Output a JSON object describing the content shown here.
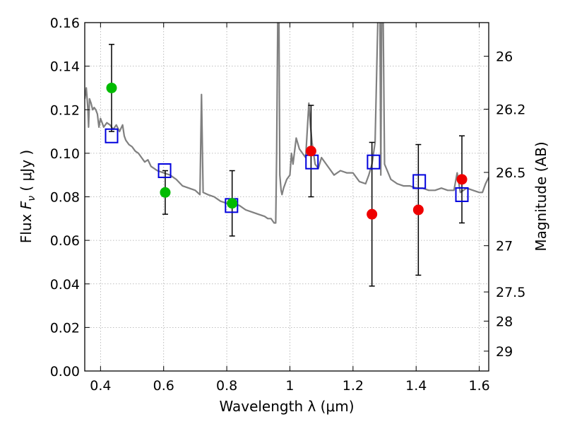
{
  "chart_data": {
    "type": "scatter",
    "xlabel": "Wavelength  λ (μm)",
    "ylabel": "Flux  F_ν  ( μJy )",
    "ylabel_parts": {
      "prefix": "Flux  ",
      "symbol": "F",
      "sub": "ν",
      "suffix": "  ( μJy )"
    },
    "y2label": "Magnitude (AB)",
    "xlim": [
      0.35,
      1.63
    ],
    "ylim": [
      0.0,
      0.16
    ],
    "grid": true,
    "x_ticks": [
      0.4,
      0.6,
      0.8,
      1.0,
      1.2,
      1.4,
      1.6
    ],
    "x_tick_labels": [
      "0.4",
      "0.6",
      "0.8",
      "1",
      "1.2",
      "1.4",
      "1.6"
    ],
    "y_ticks": [
      0.0,
      0.02,
      0.04,
      0.06,
      0.08,
      0.1,
      0.12,
      0.14,
      0.16
    ],
    "y_tick_labels": [
      "0.00",
      "0.02",
      "0.04",
      "0.06",
      "0.08",
      "0.10",
      "0.12",
      "0.14",
      "0.16"
    ],
    "mag_ticks": [
      26,
      26.2,
      26.5,
      27,
      27.5,
      28,
      29
    ],
    "mag_tick_labels": [
      "26",
      "26.2",
      "26.5",
      "27",
      "27.5",
      "28",
      "29"
    ],
    "colors": {
      "spectrum": "#808080",
      "green": "#00bb00",
      "red": "#ee0000",
      "box": "#0000dd",
      "errorbar": "#000000",
      "grid": "#aaaaaa"
    },
    "series": [
      {
        "name": "model-spectrum",
        "kind": "line",
        "x": [
          0.35,
          0.355,
          0.36,
          0.362,
          0.365,
          0.37,
          0.375,
          0.38,
          0.385,
          0.39,
          0.395,
          0.4,
          0.405,
          0.41,
          0.42,
          0.43,
          0.44,
          0.45,
          0.46,
          0.47,
          0.475,
          0.48,
          0.49,
          0.5,
          0.51,
          0.52,
          0.53,
          0.54,
          0.55,
          0.56,
          0.57,
          0.58,
          0.6,
          0.62,
          0.64,
          0.66,
          0.68,
          0.7,
          0.715,
          0.72,
          0.725,
          0.74,
          0.76,
          0.78,
          0.8,
          0.82,
          0.84,
          0.86,
          0.88,
          0.9,
          0.92,
          0.93,
          0.94,
          0.95,
          0.955,
          0.958,
          0.962,
          0.965,
          0.968,
          0.972,
          0.975,
          0.98,
          0.99,
          1.0,
          1.005,
          1.01,
          1.02,
          1.03,
          1.04,
          1.05,
          1.06,
          1.065,
          1.07,
          1.08,
          1.09,
          1.1,
          1.12,
          1.14,
          1.16,
          1.18,
          1.2,
          1.22,
          1.24,
          1.25,
          1.26,
          1.27,
          1.28,
          1.285,
          1.288,
          1.291,
          1.295,
          1.3,
          1.32,
          1.34,
          1.36,
          1.38,
          1.4,
          1.42,
          1.44,
          1.46,
          1.48,
          1.5,
          1.52,
          1.53,
          1.54,
          1.56,
          1.58,
          1.6,
          1.61,
          1.62,
          1.63
        ],
        "y": [
          0.125,
          0.13,
          0.12,
          0.112,
          0.125,
          0.123,
          0.12,
          0.121,
          0.12,
          0.118,
          0.112,
          0.116,
          0.114,
          0.112,
          0.114,
          0.113,
          0.111,
          0.113,
          0.11,
          0.113,
          0.108,
          0.106,
          0.104,
          0.103,
          0.101,
          0.1,
          0.098,
          0.096,
          0.097,
          0.094,
          0.093,
          0.092,
          0.091,
          0.09,
          0.088,
          0.085,
          0.084,
          0.083,
          0.081,
          0.127,
          0.082,
          0.081,
          0.08,
          0.078,
          0.077,
          0.077,
          0.076,
          0.074,
          0.073,
          0.072,
          0.071,
          0.07,
          0.07,
          0.068,
          0.068,
          0.1,
          0.17,
          0.17,
          0.09,
          0.083,
          0.081,
          0.084,
          0.088,
          0.09,
          0.1,
          0.095,
          0.107,
          0.102,
          0.1,
          0.098,
          0.123,
          0.113,
          0.105,
          0.095,
          0.093,
          0.098,
          0.094,
          0.09,
          0.092,
          0.091,
          0.091,
          0.087,
          0.086,
          0.09,
          0.095,
          0.105,
          0.17,
          0.17,
          0.09,
          0.17,
          0.17,
          0.095,
          0.088,
          0.086,
          0.085,
          0.085,
          0.084,
          0.084,
          0.083,
          0.083,
          0.084,
          0.083,
          0.083,
          0.091,
          0.082,
          0.084,
          0.083,
          0.082,
          0.082,
          0.086,
          0.089
        ]
      },
      {
        "name": "model-photometry",
        "kind": "open-square",
        "x": [
          0.435,
          0.603,
          0.815,
          1.07,
          1.265,
          1.41,
          1.545
        ],
        "y": [
          0.108,
          0.092,
          0.076,
          0.096,
          0.096,
          0.087,
          0.081
        ]
      },
      {
        "name": "observed-green",
        "kind": "filled-circle",
        "x": [
          0.435,
          0.605,
          0.817
        ],
        "y": [
          0.13,
          0.082,
          0.077
        ],
        "yerr": [
          0.02,
          0.01,
          0.015
        ]
      },
      {
        "name": "observed-red",
        "kind": "filled-circle",
        "x": [
          1.067,
          1.26,
          1.407,
          1.545
        ],
        "y": [
          0.101,
          0.072,
          0.074,
          0.088
        ],
        "yerr": [
          0.021,
          0.033,
          0.03,
          0.02
        ]
      }
    ]
  }
}
